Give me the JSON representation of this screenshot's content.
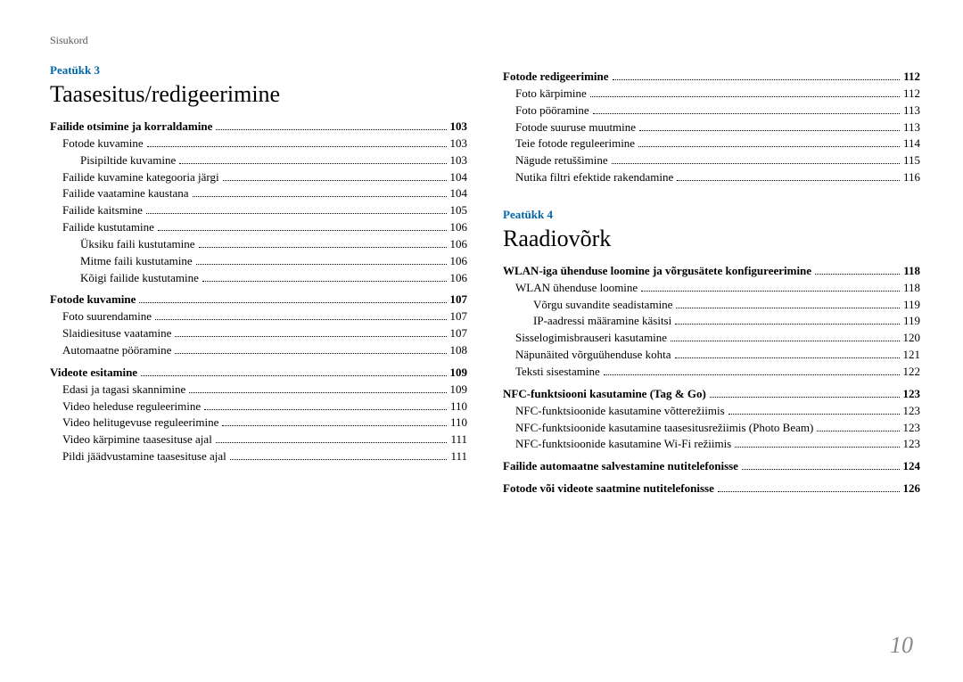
{
  "header": "Sisukord",
  "page_number": "10",
  "left": {
    "chapter_label": "Peatükk 3",
    "chapter_title": "Taasesitus/redigeerimine",
    "items": [
      {
        "label": "Failide otsimine ja korraldamine",
        "page": "103",
        "lvl": "bold"
      },
      {
        "label": "Fotode kuvamine",
        "page": "103",
        "lvl": "l1"
      },
      {
        "label": "Pisipiltide kuvamine",
        "page": "103",
        "lvl": "l2"
      },
      {
        "label": "Failide kuvamine kategooria järgi",
        "page": "104",
        "lvl": "l1"
      },
      {
        "label": "Failide vaatamine kaustana",
        "page": "104",
        "lvl": "l1"
      },
      {
        "label": "Failide kaitsmine",
        "page": "105",
        "lvl": "l1"
      },
      {
        "label": "Failide kustutamine",
        "page": "106",
        "lvl": "l1"
      },
      {
        "label": "Üksiku faili kustutamine",
        "page": "106",
        "lvl": "l2"
      },
      {
        "label": "Mitme faili kustutamine",
        "page": "106",
        "lvl": "l2"
      },
      {
        "label": "Kõigi failide kustutamine",
        "page": "106",
        "lvl": "l2"
      },
      {
        "label": "Fotode kuvamine",
        "page": "107",
        "lvl": "bold"
      },
      {
        "label": "Foto suurendamine",
        "page": "107",
        "lvl": "l1"
      },
      {
        "label": "Slaidiesituse vaatamine",
        "page": "107",
        "lvl": "l1"
      },
      {
        "label": "Automaatne pööramine",
        "page": "108",
        "lvl": "l1"
      },
      {
        "label": "Videote esitamine",
        "page": "109",
        "lvl": "bold"
      },
      {
        "label": "Edasi ja tagasi skannimine",
        "page": "109",
        "lvl": "l1"
      },
      {
        "label": "Video heleduse reguleerimine",
        "page": "110",
        "lvl": "l1"
      },
      {
        "label": "Video helitugevuse reguleerimine",
        "page": "110",
        "lvl": "l1"
      },
      {
        "label": "Video kärpimine taasesituse ajal",
        "page": "111",
        "lvl": "l1"
      },
      {
        "label": "Pildi jäädvustamine taasesituse ajal",
        "page": "111",
        "lvl": "l1"
      }
    ]
  },
  "right": {
    "top_items": [
      {
        "label": "Fotode redigeerimine",
        "page": "112",
        "lvl": "bold"
      },
      {
        "label": "Foto kärpimine",
        "page": "112",
        "lvl": "l1"
      },
      {
        "label": "Foto pööramine",
        "page": "113",
        "lvl": "l1"
      },
      {
        "label": "Fotode suuruse muutmine",
        "page": "113",
        "lvl": "l1"
      },
      {
        "label": "Teie fotode reguleerimine",
        "page": "114",
        "lvl": "l1"
      },
      {
        "label": "Nägude retuššimine",
        "page": "115",
        "lvl": "l1"
      },
      {
        "label": "Nutika filtri efektide rakendamine",
        "page": "116",
        "lvl": "l1"
      }
    ],
    "chapter_label": "Peatükk 4",
    "chapter_title": "Raadiovõrk",
    "items": [
      {
        "label": "WLAN-iga ühenduse loomine ja võrgusätete konfigureerimine",
        "page": "118",
        "lvl": "bold"
      },
      {
        "label": "WLAN ühenduse loomine",
        "page": "118",
        "lvl": "l1"
      },
      {
        "label": "Võrgu suvandite seadistamine",
        "page": "119",
        "lvl": "l2"
      },
      {
        "label": "IP-aadressi määramine käsitsi",
        "page": "119",
        "lvl": "l2"
      },
      {
        "label": "Sisselogimisbrauseri kasutamine",
        "page": "120",
        "lvl": "l1"
      },
      {
        "label": "Näpunäited võrguühenduse kohta",
        "page": "121",
        "lvl": "l1"
      },
      {
        "label": "Teksti sisestamine",
        "page": "122",
        "lvl": "l1"
      },
      {
        "label": "NFC-funktsiooni kasutamine (Tag & Go)",
        "page": "123",
        "lvl": "bold"
      },
      {
        "label": "NFC-funktsioonide kasutamine võtterežiimis",
        "page": "123",
        "lvl": "l1"
      },
      {
        "label": "NFC-funktsioonide kasutamine taasesitusrežiimis (Photo Beam)",
        "page": "123",
        "lvl": "l1"
      },
      {
        "label": "NFC-funktsioonide kasutamine Wi-Fi režiimis",
        "page": "123",
        "lvl": "l1"
      },
      {
        "label": "Failide automaatne salvestamine nutitelefonisse",
        "page": "124",
        "lvl": "bold"
      },
      {
        "label": "Fotode või videote saatmine nutitelefonisse",
        "page": "126",
        "lvl": "bold"
      }
    ]
  }
}
